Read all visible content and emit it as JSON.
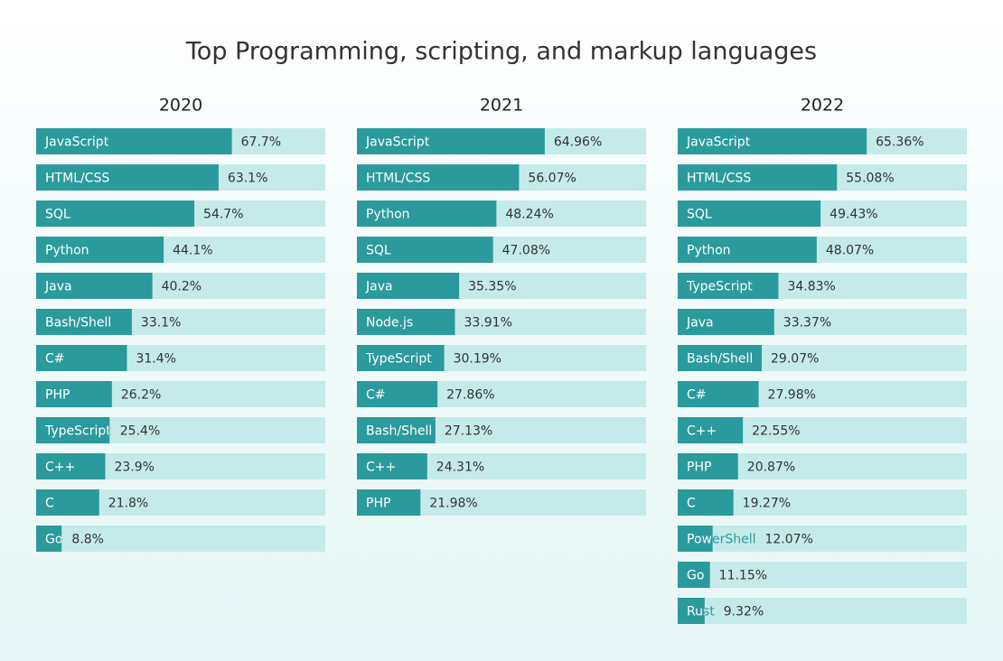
{
  "title": "Top Programming, scripting, and markup languages",
  "chart_data": [
    {
      "type": "bar",
      "orientation": "horizontal",
      "title": "2020",
      "xlim": [
        0,
        100
      ],
      "bar_color": "#2b9a9c",
      "track_color": "#c5eaea",
      "categories": [
        "JavaScript",
        "HTML/CSS",
        "SQL",
        "Python",
        "Java",
        "Bash/Shell",
        "C#",
        "PHP",
        "TypeScript",
        "C++",
        "C",
        "Go"
      ],
      "values": [
        67.7,
        63.1,
        54.7,
        44.1,
        40.2,
        33.1,
        31.4,
        26.2,
        25.4,
        23.9,
        21.8,
        8.8
      ],
      "value_labels": [
        "67.7%",
        "63.1%",
        "54.7%",
        "44.1%",
        "40.2%",
        "33.1%",
        "31.4%",
        "26.2%",
        "25.4%",
        "23.9%",
        "21.8%",
        "8.8%"
      ]
    },
    {
      "type": "bar",
      "orientation": "horizontal",
      "title": "2021",
      "xlim": [
        0,
        100
      ],
      "bar_color": "#2b9a9c",
      "track_color": "#c5eaea",
      "categories": [
        "JavaScript",
        "HTML/CSS",
        "Python",
        "SQL",
        "Java",
        "Node.js",
        "TypeScript",
        "C#",
        "Bash/Shell",
        "C++",
        "PHP"
      ],
      "values": [
        64.96,
        56.07,
        48.24,
        47.08,
        35.35,
        33.91,
        30.19,
        27.86,
        27.13,
        24.31,
        21.98
      ],
      "value_labels": [
        "64.96%",
        "56.07%",
        "48.24%",
        "47.08%",
        "35.35%",
        "33.91%",
        "30.19%",
        "27.86%",
        "27.13%",
        "24.31%",
        "21.98%"
      ]
    },
    {
      "type": "bar",
      "orientation": "horizontal",
      "title": "2022",
      "xlim": [
        0,
        100
      ],
      "bar_color": "#2b9a9c",
      "track_color": "#c5eaea",
      "categories": [
        "JavaScript",
        "HTML/CSS",
        "SQL",
        "Python",
        "TypeScript",
        "Java",
        "Bash/Shell",
        "C#",
        "C++",
        "PHP",
        "C",
        "PowerShell",
        "Go",
        "Rust"
      ],
      "values": [
        65.36,
        55.08,
        49.43,
        48.07,
        34.83,
        33.37,
        29.07,
        27.98,
        22.55,
        20.87,
        19.27,
        12.07,
        11.15,
        9.32
      ],
      "value_labels": [
        "65.36%",
        "55.08%",
        "49.43%",
        "48.07%",
        "34.83%",
        "33.37%",
        "29.07%",
        "27.98%",
        "22.55%",
        "20.87%",
        "19.27%",
        "12.07%",
        "11.15%",
        "9.32%"
      ]
    }
  ]
}
